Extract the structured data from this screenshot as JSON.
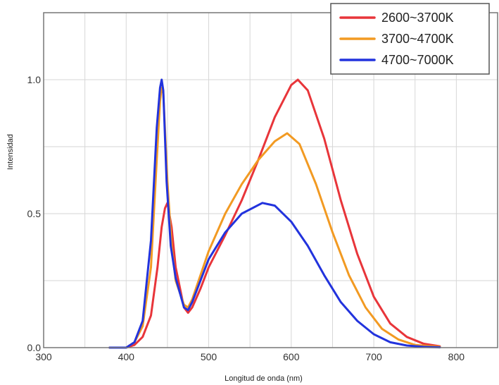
{
  "chart_data": {
    "type": "line",
    "title": "",
    "xlabel": "Longitud de onda (nm)",
    "ylabel": "Intensidad",
    "xlim": [
      300,
      850
    ],
    "ylim": [
      0,
      1.25
    ],
    "x_ticks": [
      300,
      400,
      500,
      600,
      700,
      800
    ],
    "x_tick_labels": [
      "300",
      "400",
      "500",
      "600",
      "700",
      "800"
    ],
    "y_ticks": [
      0.0,
      0.5,
      1.0
    ],
    "y_tick_labels": [
      "0.0",
      "0.5",
      "1.0"
    ],
    "grid": true,
    "legend_position": "top-right",
    "series": [
      {
        "name": "2600~3700K",
        "color": "#e8353a",
        "x": [
          380,
          400,
          410,
          420,
          430,
          438,
          443,
          447,
          450,
          455,
          460,
          470,
          475,
          480,
          490,
          500,
          520,
          540,
          560,
          580,
          600,
          608,
          620,
          640,
          660,
          680,
          700,
          720,
          740,
          760,
          780
        ],
        "y": [
          0,
          0,
          0.01,
          0.04,
          0.12,
          0.3,
          0.45,
          0.52,
          0.54,
          0.45,
          0.3,
          0.15,
          0.13,
          0.15,
          0.22,
          0.3,
          0.42,
          0.55,
          0.7,
          0.86,
          0.98,
          1.0,
          0.96,
          0.78,
          0.55,
          0.35,
          0.19,
          0.09,
          0.04,
          0.015,
          0.005
        ]
      },
      {
        "name": "3700~4700K",
        "color": "#f29a22",
        "x": [
          380,
          400,
          410,
          420,
          430,
          437,
          441,
          443,
          445,
          450,
          455,
          460,
          470,
          475,
          480,
          490,
          500,
          520,
          540,
          560,
          580,
          595,
          610,
          630,
          650,
          670,
          690,
          710,
          730,
          750,
          780
        ],
        "y": [
          0,
          0,
          0.02,
          0.08,
          0.3,
          0.7,
          0.92,
          0.97,
          0.95,
          0.62,
          0.38,
          0.25,
          0.16,
          0.15,
          0.18,
          0.27,
          0.36,
          0.5,
          0.61,
          0.7,
          0.77,
          0.8,
          0.76,
          0.61,
          0.43,
          0.27,
          0.15,
          0.07,
          0.03,
          0.01,
          0.003
        ]
      },
      {
        "name": "4700~7000K",
        "color": "#2233dd",
        "x": [
          380,
          400,
          410,
          420,
          430,
          437,
          441,
          443,
          445,
          449,
          454,
          460,
          470,
          475,
          480,
          490,
          500,
          520,
          540,
          565,
          580,
          600,
          620,
          640,
          660,
          680,
          700,
          720,
          740,
          760,
          780
        ],
        "y": [
          0,
          0,
          0.02,
          0.1,
          0.4,
          0.82,
          0.97,
          1.0,
          0.96,
          0.62,
          0.38,
          0.26,
          0.15,
          0.14,
          0.17,
          0.25,
          0.33,
          0.43,
          0.5,
          0.54,
          0.53,
          0.47,
          0.38,
          0.27,
          0.17,
          0.1,
          0.05,
          0.02,
          0.008,
          0.003,
          0.001
        ]
      }
    ]
  }
}
